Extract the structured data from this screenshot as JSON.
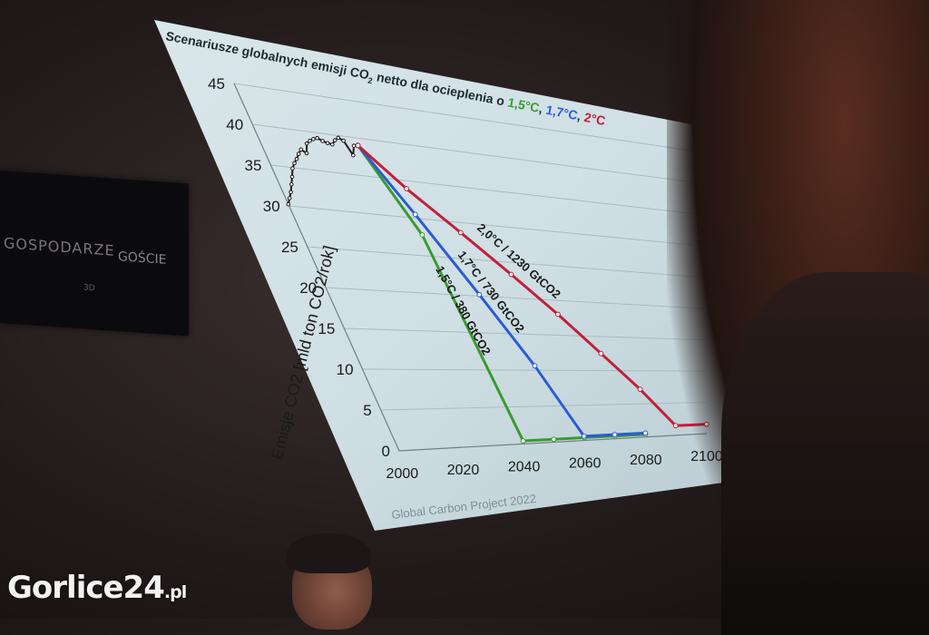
{
  "watermark": {
    "name": "Gorlice24",
    "tld": ".pl"
  },
  "board": {
    "left_text": "GOSPODARZE",
    "right_text": "GOŚCIE",
    "small_text": "3D"
  },
  "slide": {
    "title_parts": [
      "Scenariusze globalnych emisji CO",
      "2",
      " netto dla ocieplenia o "
    ],
    "title_targets": [
      {
        "text": "1,5°C",
        "color": "#3a9b2e"
      },
      {
        "text": "1,7°C",
        "color": "#2c5bd6"
      },
      {
        "text": "2°C",
        "color": "#c21f3a"
      }
    ],
    "source": "Global Carbon Project 2022"
  },
  "chart_data": {
    "type": "line",
    "title": "Scenariusze globalnych emisji CO2 netto dla ocieplenia o 1,5°C, 1,7°C i 2°C",
    "ylabel": "Emisje CO2 [mld ton CO2/rok]",
    "xlabel": "",
    "xlim": [
      1999,
      2100
    ],
    "ylim": [
      0,
      45
    ],
    "xticks": [
      "2000",
      "2020",
      "2040",
      "2060",
      "2080",
      "2100"
    ],
    "yticks": [
      "0",
      "5",
      "10",
      "15",
      "20",
      "25",
      "30",
      "35",
      "40",
      "45"
    ],
    "grid": true,
    "series": [
      {
        "name": "historical",
        "color": "#1a1a1a",
        "x": [
          1999,
          2000,
          2001,
          2002,
          2003,
          2004,
          2005,
          2006,
          2007,
          2008,
          2009,
          2010,
          2011,
          2012,
          2013,
          2014,
          2015,
          2016,
          2017,
          2018,
          2019,
          2020,
          2021,
          2022
        ],
        "y": [
          30.2,
          31.0,
          31.8,
          32.8,
          33.8,
          34.9,
          35.6,
          36.2,
          36.9,
          37.5,
          37.1,
          38.4,
          38.8,
          39.1,
          39.3,
          39.0,
          38.8,
          38.7,
          39.3,
          39.7,
          39.4,
          37.6,
          38.9,
          39.1
        ]
      },
      {
        "name": "1,5°C / 380 GtCO2",
        "color": "#3a9b2e",
        "x": [
          2022,
          2030,
          2040,
          2050,
          2060,
          2070,
          2080
        ],
        "y": [
          39.0,
          27.8,
          0.4,
          0.4,
          0.4,
          0.4,
          0.4
        ]
      },
      {
        "name": "1,7°C / 730 GtCO2",
        "color": "#2c5bd6",
        "x": [
          2022,
          2030,
          2040,
          2050,
          2060,
          2070,
          2080
        ],
        "y": [
          39.0,
          30.5,
          20.2,
          10.6,
          0.6,
          0.6,
          0.6
        ]
      },
      {
        "name": "2,0°C / 1230 GtCO2",
        "color": "#c21f3a",
        "x": [
          2022,
          2030,
          2040,
          2050,
          2060,
          2070,
          2080,
          2090,
          2100
        ],
        "y": [
          39.0,
          33.9,
          28.6,
          23.3,
          18.0,
          12.5,
          7.2,
          1.5,
          1.5
        ]
      }
    ]
  }
}
